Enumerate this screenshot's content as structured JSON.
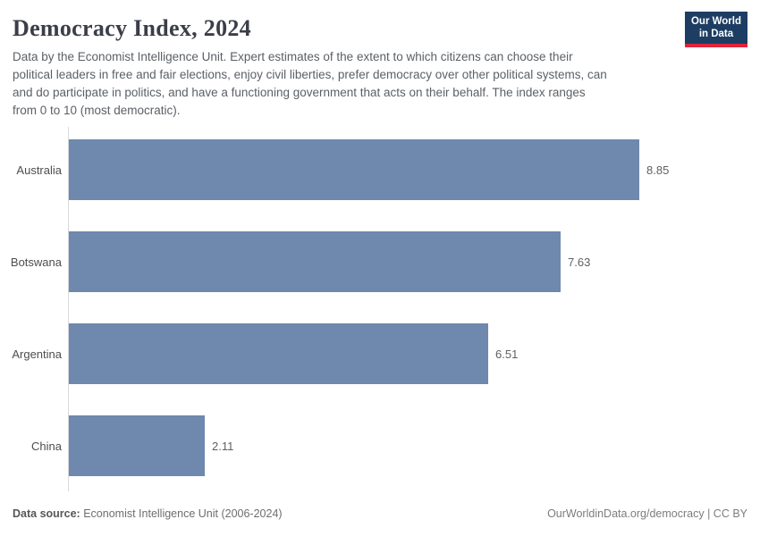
{
  "header": {
    "logo": {
      "line1": "Our World",
      "line2": "in Data",
      "bg_color": "#1d3d63",
      "accent_color": "#e0243c"
    }
  },
  "chart_data": {
    "type": "bar",
    "orientation": "horizontal",
    "title": "Democracy Index, 2024",
    "subtitle_lines": [
      "Data by the Economist Intelligence Unit. Expert estimates of the extent to which citizens can choose their",
      "political leaders in free and fair elections, enjoy civil liberties, prefer democracy over other political systems, can",
      "and do participate in politics, and have a functioning government that acts on their behalf. The index ranges",
      "from 0 to 10 (most democratic)."
    ],
    "categories": [
      "Australia",
      "Botswana",
      "Argentina",
      "China"
    ],
    "values": [
      8.85,
      7.63,
      6.51,
      2.11
    ],
    "xlabel": "",
    "ylabel": "",
    "xlim": [
      0,
      8.85
    ],
    "grid": false,
    "legend": "none",
    "bar_color": "#6e88ae",
    "axis_line_color": "#d9d9d9"
  },
  "footer": {
    "source_label": "Data source:",
    "source_value": "Economist Intelligence Unit (2006-2024)",
    "credit": "OurWorldinData.org/democracy | CC BY"
  }
}
